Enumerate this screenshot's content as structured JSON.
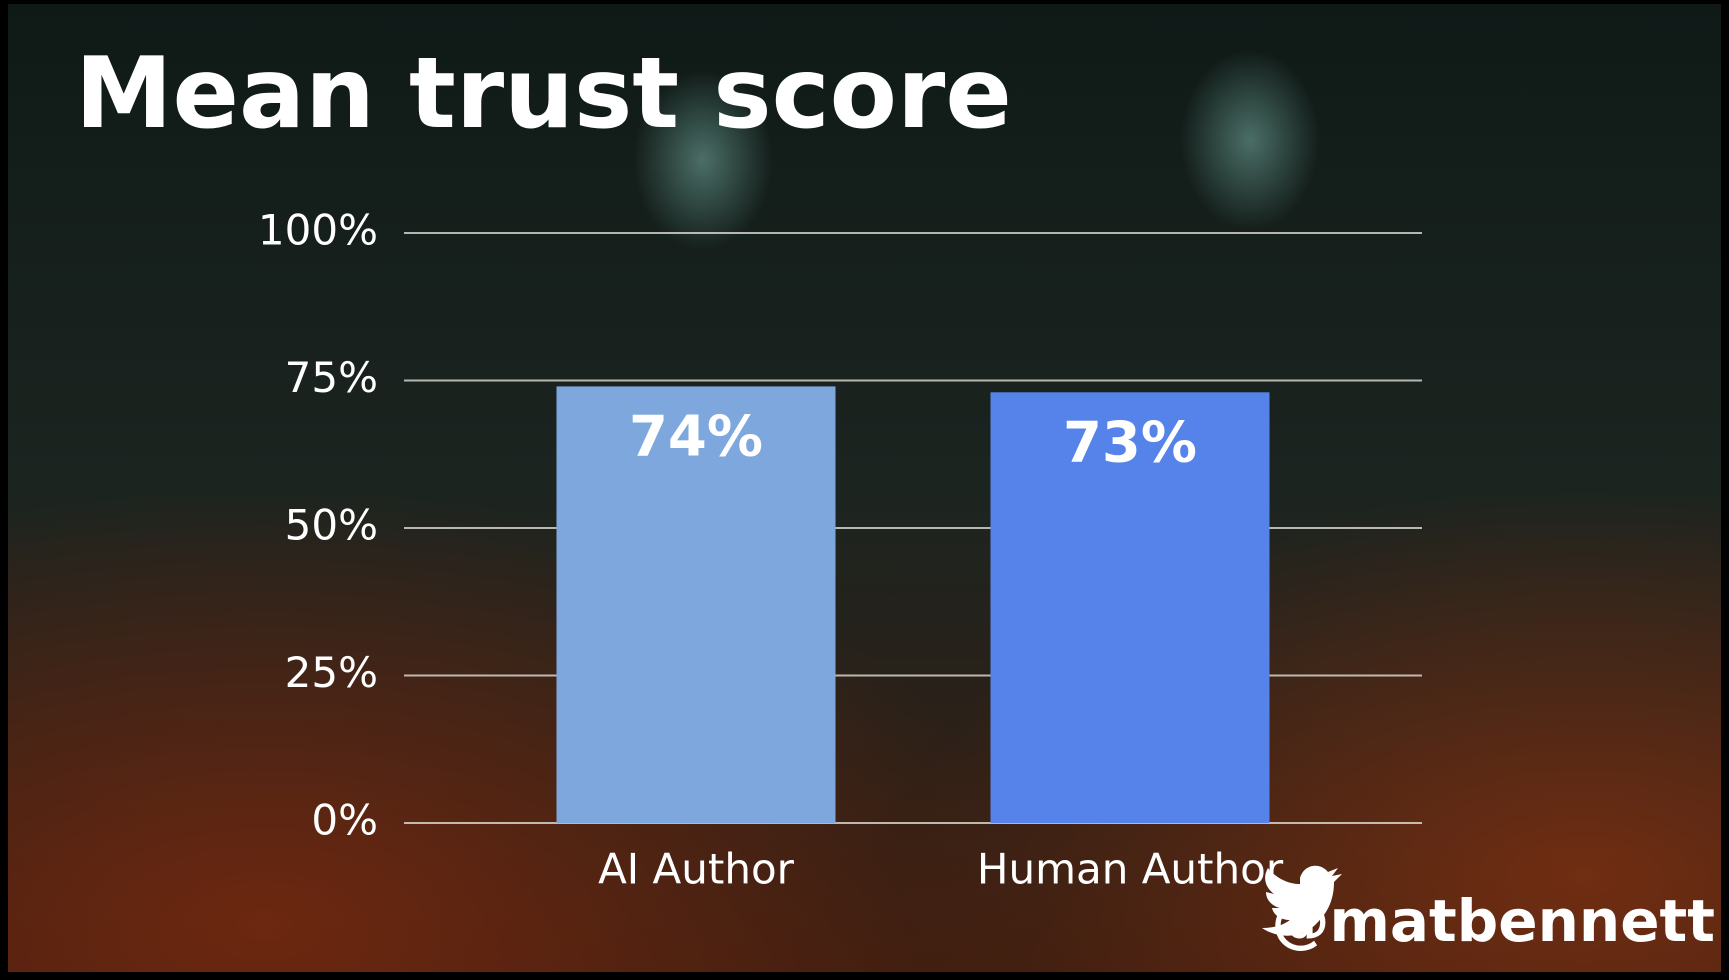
{
  "chart_data": {
    "type": "bar",
    "title": "Mean trust score",
    "categories": [
      "AI Author",
      "Human Author"
    ],
    "values": [
      74,
      73
    ],
    "value_labels": [
      "74%",
      "73%"
    ],
    "colors": [
      "#7ea8dd",
      "#5683ea"
    ],
    "ylim": [
      0,
      100
    ],
    "yticks": [
      {
        "value": 0,
        "label": "0%"
      },
      {
        "value": 25,
        "label": "25%"
      },
      {
        "value": 50,
        "label": "50%"
      },
      {
        "value": 75,
        "label": "75%"
      },
      {
        "value": 100,
        "label": "100%"
      }
    ],
    "grid": true,
    "handle": "@matbennett"
  }
}
